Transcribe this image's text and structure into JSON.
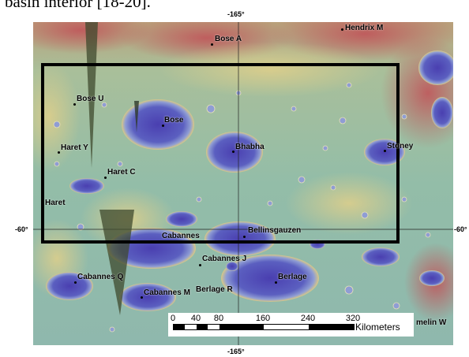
{
  "caption": "basin interior [18-20].",
  "axes": {
    "top_longitude": "-165°",
    "bottom_longitude": "-165°",
    "left_latitude": "-60°",
    "right_latitude": "-60°"
  },
  "features": [
    {
      "name": "Bose A"
    },
    {
      "name": "Hendrix M"
    },
    {
      "name": "Bose U"
    },
    {
      "name": "Bose"
    },
    {
      "name": "Haret Y"
    },
    {
      "name": "Bhabha"
    },
    {
      "name": "Stoney"
    },
    {
      "name": "Haret C"
    },
    {
      "name": "Haret"
    },
    {
      "name": "Cabannes"
    },
    {
      "name": "Bellinsgauzen"
    },
    {
      "name": "Cabannes J"
    },
    {
      "name": "Cabannes Q"
    },
    {
      "name": "Berlage"
    },
    {
      "name": "Cabannes M"
    },
    {
      "name": "Berlage R"
    },
    {
      "name": "melin W"
    }
  ],
  "scale": {
    "ticks": [
      "0",
      "40",
      "80",
      "160",
      "240",
      "320"
    ],
    "unit": "Kilometers"
  },
  "colors": {
    "highland_red": "#c0555a",
    "mid_yellow": "#d9c985",
    "plain_green": "#9cc0a2",
    "lowland_blue": "#5b5fc0",
    "deep_violet": "#4a3fb0",
    "box_border": "#000000"
  }
}
